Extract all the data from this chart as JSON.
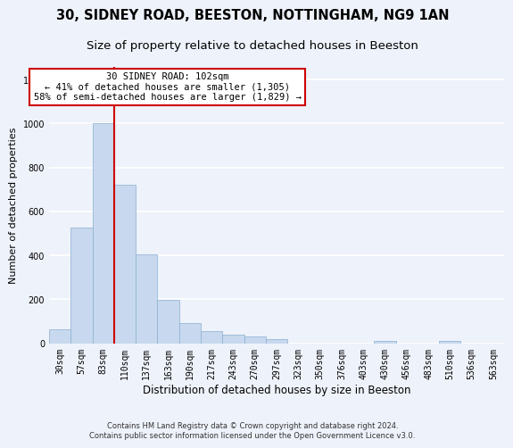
{
  "title": "30, SIDNEY ROAD, BEESTON, NOTTINGHAM, NG9 1AN",
  "subtitle": "Size of property relative to detached houses in Beeston",
  "xlabel": "Distribution of detached houses by size in Beeston",
  "ylabel": "Number of detached properties",
  "bin_labels": [
    "30sqm",
    "57sqm",
    "83sqm",
    "110sqm",
    "137sqm",
    "163sqm",
    "190sqm",
    "217sqm",
    "243sqm",
    "270sqm",
    "297sqm",
    "323sqm",
    "350sqm",
    "376sqm",
    "403sqm",
    "430sqm",
    "456sqm",
    "483sqm",
    "510sqm",
    "536sqm",
    "563sqm"
  ],
  "bar_values": [
    65,
    525,
    1000,
    720,
    405,
    197,
    90,
    55,
    40,
    32,
    18,
    0,
    0,
    0,
    0,
    12,
    0,
    0,
    10,
    0,
    0
  ],
  "bar_color": "#c8d8ee",
  "bar_edge_color": "#8ab0d0",
  "red_line_x": 3,
  "annotation_text": "30 SIDNEY ROAD: 102sqm\n← 41% of detached houses are smaller (1,305)\n58% of semi-detached houses are larger (1,829) →",
  "annotation_box_facecolor": "#ffffff",
  "annotation_box_edgecolor": "#cc0000",
  "footer_text": "Contains HM Land Registry data © Crown copyright and database right 2024.\nContains public sector information licensed under the Open Government Licence v3.0.",
  "ylim": [
    0,
    1260
  ],
  "yticks": [
    0,
    200,
    400,
    600,
    800,
    1000,
    1200
  ],
  "background_color": "#eef2fa",
  "grid_color": "#ffffff",
  "title_fontsize": 10.5,
  "subtitle_fontsize": 9.5,
  "xlabel_fontsize": 8.5,
  "ylabel_fontsize": 8,
  "tick_fontsize": 7,
  "annotation_fontsize": 7.5,
  "footer_fontsize": 6
}
